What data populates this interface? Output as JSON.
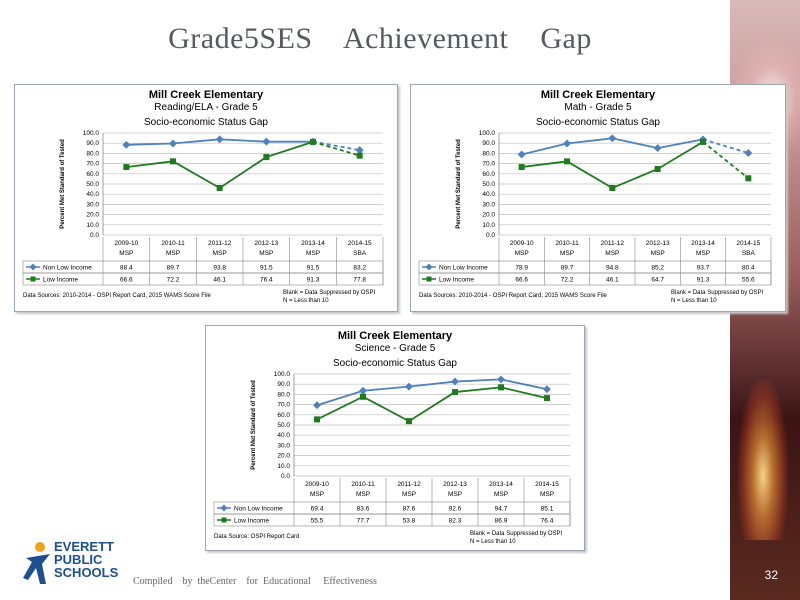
{
  "slide": {
    "title": "Grade5SES    Achievement    Gap",
    "page_number": "32",
    "footer_credit": "Compiled    by  theCenter    for  Educational     Effectiveness"
  },
  "logo": {
    "icon": "runner-figure-icon",
    "line1": "EVERETT",
    "line2": "PUBLIC",
    "line3": "SCHOOLS"
  },
  "colors": {
    "non_low": "#4f81bd",
    "low": "#1e7b1e",
    "title_text": "#555a60"
  },
  "chart_data": [
    {
      "type": "line",
      "title": "Mill Creek Elementary",
      "subtitle": "Reading/ELA - Grade 5",
      "subtitle2": "Socio-economic Status Gap",
      "ylabel": "Percent Met Standard of Tested",
      "ylim": [
        0,
        100
      ],
      "yticks": [
        "100.0",
        "90.0",
        "80.0",
        "70.0",
        "60.0",
        "50.0",
        "40.0",
        "30.0",
        "20.0",
        "10.0",
        "0.0"
      ],
      "categories": [
        "2009-10",
        "2010-11",
        "2011-12",
        "2012-13",
        "2013-14",
        "2014-15"
      ],
      "tests": [
        "MSP",
        "MSP",
        "MSP",
        "MSP",
        "MSP",
        "SBA"
      ],
      "dashed_last_segment": true,
      "series": [
        {
          "name": "Non Low Income",
          "values": [
            88.4,
            89.7,
            93.8,
            91.5,
            91.5,
            83.2
          ],
          "labels": [
            "88.4",
            "89.7",
            "93.8",
            "91.5",
            "91.5",
            "83.2"
          ]
        },
        {
          "name": "Low Income",
          "values": [
            66.6,
            72.2,
            46.1,
            76.4,
            91.3,
            77.8
          ],
          "labels": [
            "66.6",
            "72.2",
            "46.1",
            "76.4",
            "91.3",
            "77.8"
          ]
        }
      ],
      "source": "Data Sources: 2010-2014 - OSPI Report Card, 2015 WAMS Score File",
      "note1": "Blank = Data Suppressed by OSPI",
      "note2": "N = Less than 10"
    },
    {
      "type": "line",
      "title": "Mill Creek Elementary",
      "subtitle": "Math - Grade 5",
      "subtitle2": "Socio-economic Status Gap",
      "ylabel": "Percent Met Standard of Tested",
      "ylim": [
        0,
        100
      ],
      "yticks": [
        "100.0",
        "90.0",
        "80.0",
        "70.0",
        "60.0",
        "50.0",
        "40.0",
        "30.0",
        "20.0",
        "10.0",
        "0.0"
      ],
      "categories": [
        "2009-10",
        "2010-11",
        "2011-12",
        "2012-13",
        "2013-14",
        "2014-15"
      ],
      "tests": [
        "MSP",
        "MSP",
        "MSP",
        "MSP",
        "MSP",
        "SBA"
      ],
      "dashed_last_segment": true,
      "series": [
        {
          "name": "Non Low Income",
          "values": [
            78.9,
            89.7,
            94.8,
            85.2,
            93.7,
            80.4
          ],
          "labels": [
            "78.9",
            "89.7",
            "94.8",
            "85.2",
            "93.7",
            "80.4"
          ]
        },
        {
          "name": "Low Income",
          "values": [
            66.6,
            72.2,
            46.1,
            64.7,
            91.3,
            55.6
          ],
          "labels": [
            "66.6",
            "72.2",
            "46.1",
            "64.7",
            "91.3",
            "55.6"
          ]
        }
      ],
      "source": "Data Sources: 2010-2014 - OSPI Report Card, 2015 WAMS Score File",
      "note1": "Blank = Data Suppressed by OSPI",
      "note2": "N = Less than 10"
    },
    {
      "type": "line",
      "title": "Mill Creek Elementary",
      "subtitle": "Science - Grade 5",
      "subtitle2": "Socio-economic Status Gap",
      "ylabel": "Percent Met Standard of Tested",
      "ylim": [
        0,
        100
      ],
      "yticks": [
        "100.0",
        "90.0",
        "80.0",
        "70.0",
        "60.0",
        "50.0",
        "40.0",
        "30.0",
        "20.0",
        "10.0",
        "0.0"
      ],
      "categories": [
        "2009-10",
        "2010-11",
        "2011-12",
        "2012-13",
        "2013-14",
        "2014-15"
      ],
      "tests": [
        "MSP",
        "MSP",
        "MSP",
        "MSP",
        "MSP",
        "MSP"
      ],
      "dashed_last_segment": false,
      "series": [
        {
          "name": "Non Low Income",
          "values": [
            69.4,
            83.6,
            87.6,
            92.6,
            94.7,
            85.1
          ],
          "labels": [
            "69.4",
            "83.6",
            "87.6",
            "92.6",
            "94.7",
            "85.1"
          ]
        },
        {
          "name": "Low Income",
          "values": [
            55.5,
            77.7,
            53.8,
            82.3,
            86.9,
            76.4
          ],
          "labels": [
            "55.5",
            "77.7",
            "53.8",
            "82.3",
            "86.9",
            "76.4"
          ]
        }
      ],
      "source": "Data Source: OSPI Report Card",
      "note1": "Blank = Data Suppressed by OSPI",
      "note2": "N = Less than 10"
    }
  ]
}
